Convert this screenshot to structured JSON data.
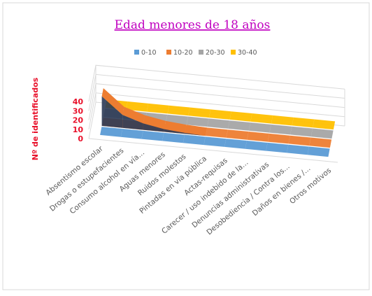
{
  "chart_data": {
    "type": "area",
    "title": "Edad menores de 18 años",
    "ylabel": "Nº de identificados",
    "xlabel": "",
    "ylim": [
      0,
      40
    ],
    "yticks": [
      0,
      10,
      20,
      30,
      40
    ],
    "legend_position": "top",
    "categories": [
      "Absentismo escolar",
      "Drogas o estupefacientes",
      "Consumo alcohol en vía...",
      "Aguas menores",
      "Ruidos molestos",
      "Pintadas en vía pública",
      "Actas-requisas",
      "Carecer / uso indebido de la...",
      "Denuncias administrativas",
      "Desobediencia / Contra los...",
      "Daños en bienes /...",
      "Otros motivos"
    ],
    "series": [
      {
        "name": "0-10",
        "color": "#5b9bd5",
        "values": [
          0,
          0,
          0,
          0,
          0,
          0,
          0,
          0,
          0,
          0,
          0,
          0
        ]
      },
      {
        "name": "10-20",
        "color": "#ed7d31",
        "values": [
          32,
          14,
          7,
          3,
          1,
          0,
          0,
          0,
          0,
          0,
          0,
          0
        ]
      },
      {
        "name": "20-30",
        "color": "#a5a5a5",
        "values": [
          0,
          0,
          0,
          0,
          0,
          0,
          0,
          0,
          0,
          0,
          0,
          0
        ]
      },
      {
        "name": "30-40",
        "color": "#ffc000",
        "values": [
          0,
          0,
          0,
          0,
          0,
          0,
          0,
          0,
          0,
          0,
          0,
          0
        ]
      }
    ]
  }
}
